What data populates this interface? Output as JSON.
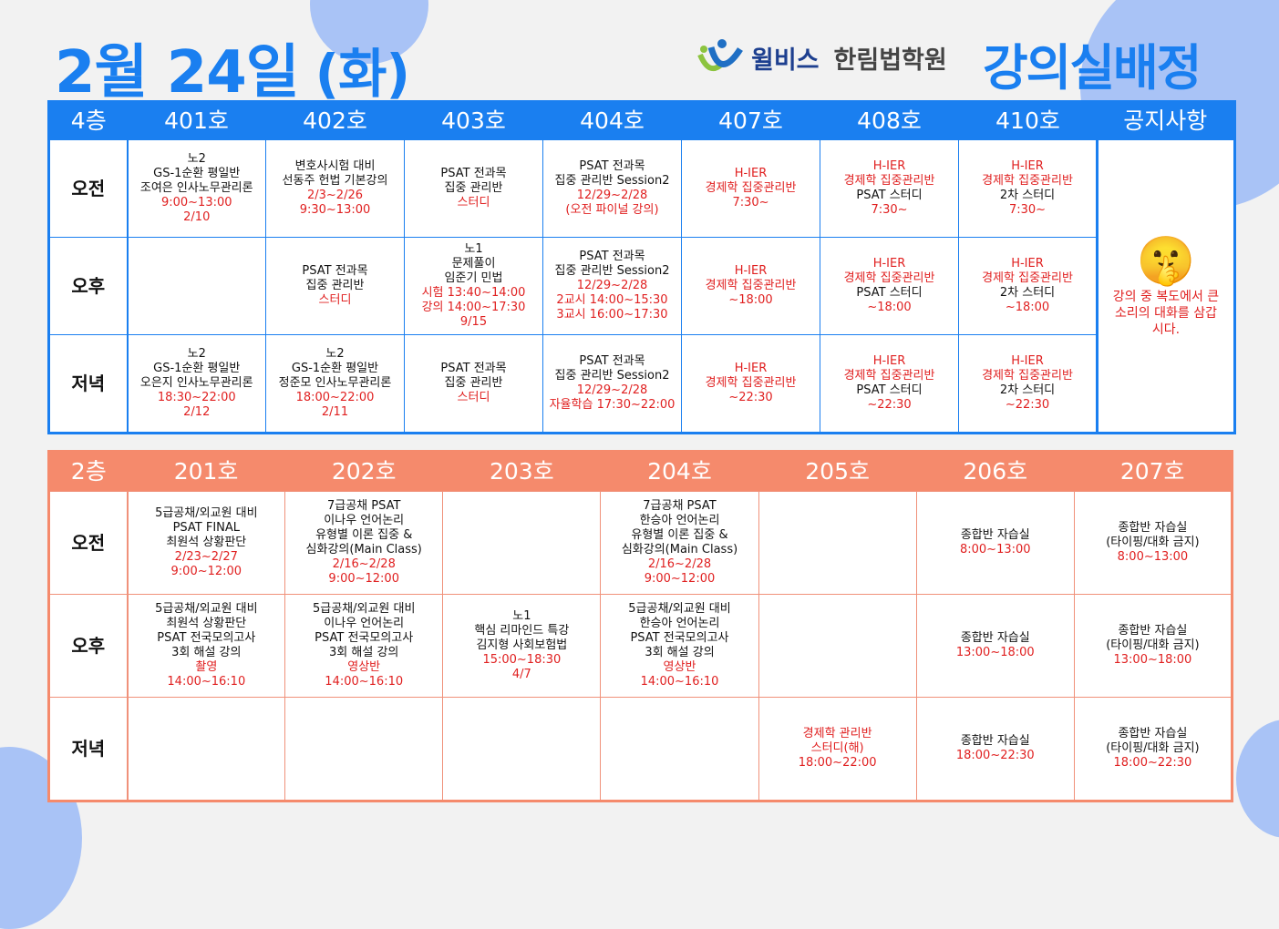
{
  "title": {
    "date": "2월 24일",
    "weekday": "(화)"
  },
  "logo": {
    "brand": "윌비스",
    "academy": "한림법학원"
  },
  "heading": "강의실배정",
  "colors": {
    "blue": "#1a7ff0",
    "salmon": "#f58a6c",
    "red": "#e02020"
  },
  "top": {
    "floor": "4층",
    "rooms": [
      "401호",
      "402호",
      "403호",
      "404호",
      "407호",
      "408호",
      "410호"
    ],
    "notice_header": "공지사항",
    "notice": {
      "icon": "shushing-face-icon",
      "text": "강의 중 복도에서 큰 소리의 대화를 삼갑시다."
    },
    "rows": [
      {
        "label": "오전",
        "cells": [
          [
            {
              "t": "노2"
            },
            {
              "t": "GS-1순환 평일반"
            },
            {
              "t": "조여은 인사노무관리론"
            },
            {
              "t": "9:00~13:00",
              "c": "red"
            },
            {
              "t": "2/10",
              "c": "red"
            }
          ],
          [
            {
              "t": "변호사시험 대비"
            },
            {
              "t": "선동주 헌법 기본강의"
            },
            {
              "t": "2/3~2/26",
              "c": "red"
            },
            {
              "t": "9:30~13:00",
              "c": "red"
            }
          ],
          [
            {
              "t": "PSAT 전과목"
            },
            {
              "t": "집중 관리반"
            },
            {
              "t": "스터디",
              "c": "red"
            }
          ],
          [
            {
              "t": "PSAT 전과목"
            },
            {
              "t": "집중 관리반 Session2"
            },
            {
              "t": "12/29~2/28",
              "c": "red"
            },
            {
              "t": "(오전 파이널 강의)",
              "c": "red"
            }
          ],
          [
            {
              "t": "H-IER",
              "c": "red"
            },
            {
              "t": "경제학 집중관리반",
              "c": "red"
            },
            {
              "t": "7:30~",
              "c": "red"
            }
          ],
          [
            {
              "t": "H-IER",
              "c": "red"
            },
            {
              "t": "경제학 집중관리반",
              "c": "red"
            },
            {
              "t": "PSAT 스터디"
            },
            {
              "t": "7:30~",
              "c": "red"
            }
          ],
          [
            {
              "t": "H-IER",
              "c": "red"
            },
            {
              "t": "경제학 집중관리반",
              "c": "red"
            },
            {
              "t": "2차 스터디"
            },
            {
              "t": "7:30~",
              "c": "red"
            }
          ]
        ]
      },
      {
        "label": "오후",
        "cells": [
          [],
          [
            {
              "t": "PSAT 전과목"
            },
            {
              "t": "집중 관리반"
            },
            {
              "t": "스터디",
              "c": "red"
            }
          ],
          [
            {
              "t": "노1"
            },
            {
              "t": "문제풀이"
            },
            {
              "t": "임준기 민법"
            },
            {
              "t": "시험 13:40~14:00",
              "c": "red"
            },
            {
              "t": "강의 14:00~17:30",
              "c": "red"
            },
            {
              "t": "9/15",
              "c": "red"
            }
          ],
          [
            {
              "t": "PSAT 전과목"
            },
            {
              "t": "집중 관리반 Session2"
            },
            {
              "t": "12/29~2/28",
              "c": "red"
            },
            {
              "t": "2교시 14:00~15:30",
              "c": "red"
            },
            {
              "t": "3교시 16:00~17:30",
              "c": "red"
            }
          ],
          [
            {
              "t": "H-IER",
              "c": "red"
            },
            {
              "t": "경제학 집중관리반",
              "c": "red"
            },
            {
              "t": "~18:00",
              "c": "red"
            }
          ],
          [
            {
              "t": "H-IER",
              "c": "red"
            },
            {
              "t": "경제학 집중관리반",
              "c": "red"
            },
            {
              "t": "PSAT 스터디"
            },
            {
              "t": "~18:00",
              "c": "red"
            }
          ],
          [
            {
              "t": "H-IER",
              "c": "red"
            },
            {
              "t": "경제학 집중관리반",
              "c": "red"
            },
            {
              "t": "2차 스터디"
            },
            {
              "t": "~18:00",
              "c": "red"
            }
          ]
        ]
      },
      {
        "label": "저녁",
        "cells": [
          [
            {
              "t": "노2"
            },
            {
              "t": "GS-1순환 평일반"
            },
            {
              "t": "오은지 인사노무관리론"
            },
            {
              "t": "18:30~22:00",
              "c": "red"
            },
            {
              "t": "2/12",
              "c": "red"
            }
          ],
          [
            {
              "t": "노2"
            },
            {
              "t": "GS-1순환 평일반"
            },
            {
              "t": "정준모 인사노무관리론"
            },
            {
              "t": "18:00~22:00",
              "c": "red"
            },
            {
              "t": "2/11",
              "c": "red"
            }
          ],
          [
            {
              "t": "PSAT 전과목"
            },
            {
              "t": "집중 관리반"
            },
            {
              "t": "스터디",
              "c": "red"
            }
          ],
          [
            {
              "t": "PSAT 전과목"
            },
            {
              "t": "집중 관리반 Session2"
            },
            {
              "t": "12/29~2/28",
              "c": "red"
            },
            {
              "t": "자율학습 17:30~22:00",
              "c": "red"
            }
          ],
          [
            {
              "t": "H-IER",
              "c": "red"
            },
            {
              "t": "경제학 집중관리반",
              "c": "red"
            },
            {
              "t": "~22:30",
              "c": "red"
            }
          ],
          [
            {
              "t": "H-IER",
              "c": "red"
            },
            {
              "t": "경제학 집중관리반",
              "c": "red"
            },
            {
              "t": "PSAT 스터디"
            },
            {
              "t": "~22:30",
              "c": "red"
            }
          ],
          [
            {
              "t": "H-IER",
              "c": "red"
            },
            {
              "t": "경제학 집중관리반",
              "c": "red"
            },
            {
              "t": "2차 스터디"
            },
            {
              "t": "~22:30",
              "c": "red"
            }
          ]
        ]
      }
    ]
  },
  "bottom": {
    "floor": "2층",
    "rooms": [
      "201호",
      "202호",
      "203호",
      "204호",
      "205호",
      "206호",
      "207호"
    ],
    "rows": [
      {
        "label": "오전",
        "cells": [
          [
            {
              "t": "5급공채/외교원 대비"
            },
            {
              "t": "PSAT FINAL"
            },
            {
              "t": "최원석 상황판단"
            },
            {
              "t": "2/23~2/27",
              "c": "red"
            },
            {
              "t": "9:00~12:00",
              "c": "red"
            }
          ],
          [
            {
              "t": "7급공채 PSAT"
            },
            {
              "t": "이나우 언어논리"
            },
            {
              "t": "유형별 이론 집중 &"
            },
            {
              "t": "심화강의(Main Class)"
            },
            {
              "t": "2/16~2/28",
              "c": "red"
            },
            {
              "t": "9:00~12:00",
              "c": "red"
            }
          ],
          [],
          [
            {
              "t": "7급공채 PSAT"
            },
            {
              "t": "한승아 언어논리"
            },
            {
              "t": "유형별 이론 집중 &"
            },
            {
              "t": "심화강의(Main Class)"
            },
            {
              "t": "2/16~2/28",
              "c": "red"
            },
            {
              "t": "9:00~12:00",
              "c": "red"
            }
          ],
          [],
          [
            {
              "t": "종합반 자습실"
            },
            {
              "t": "8:00~13:00",
              "c": "red"
            }
          ],
          [
            {
              "t": "종합반 자습실"
            },
            {
              "t": "(타이핑/대화 금지)"
            },
            {
              "t": "8:00~13:00",
              "c": "red"
            }
          ]
        ]
      },
      {
        "label": "오후",
        "cells": [
          [
            {
              "t": "5급공채/외교원 대비"
            },
            {
              "t": "최원석 상황판단"
            },
            {
              "t": "PSAT 전국모의고사"
            },
            {
              "t": "3회 해설 강의"
            },
            {
              "t": "촬영",
              "c": "red"
            },
            {
              "t": "14:00~16:10",
              "c": "red"
            }
          ],
          [
            {
              "t": "5급공채/외교원 대비"
            },
            {
              "t": "이나우 언어논리"
            },
            {
              "t": "PSAT 전국모의고사"
            },
            {
              "t": "3회 해설 강의"
            },
            {
              "t": "영상반",
              "c": "red"
            },
            {
              "t": "14:00~16:10",
              "c": "red"
            }
          ],
          [
            {
              "t": "노1"
            },
            {
              "t": "핵심 리마인드 특강"
            },
            {
              "t": "김지형 사회보험법"
            },
            {
              "t": "15:00~18:30",
              "c": "red"
            },
            {
              "t": "4/7",
              "c": "red"
            }
          ],
          [
            {
              "t": "5급공채/외교원 대비"
            },
            {
              "t": "한승아 언어논리"
            },
            {
              "t": "PSAT 전국모의고사"
            },
            {
              "t": "3회 해설 강의"
            },
            {
              "t": "영상반",
              "c": "red"
            },
            {
              "t": "14:00~16:10",
              "c": "red"
            }
          ],
          [],
          [
            {
              "t": "종합반 자습실"
            },
            {
              "t": "13:00~18:00",
              "c": "red"
            }
          ],
          [
            {
              "t": "종합반 자습실"
            },
            {
              "t": "(타이핑/대화 금지)"
            },
            {
              "t": "13:00~18:00",
              "c": "red"
            }
          ]
        ]
      },
      {
        "label": "저녁",
        "cells": [
          [],
          [],
          [],
          [],
          [
            {
              "t": "경제학 관리반",
              "c": "red"
            },
            {
              "t": "스터디(해)",
              "c": "red"
            },
            {
              "t": "18:00~22:00",
              "c": "red"
            }
          ],
          [
            {
              "t": "종합반 자습실"
            },
            {
              "t": "18:00~22:30",
              "c": "red"
            }
          ],
          [
            {
              "t": "종합반 자습실"
            },
            {
              "t": "(타이핑/대화 금지)"
            },
            {
              "t": "18:00~22:30",
              "c": "red"
            }
          ]
        ]
      }
    ]
  }
}
